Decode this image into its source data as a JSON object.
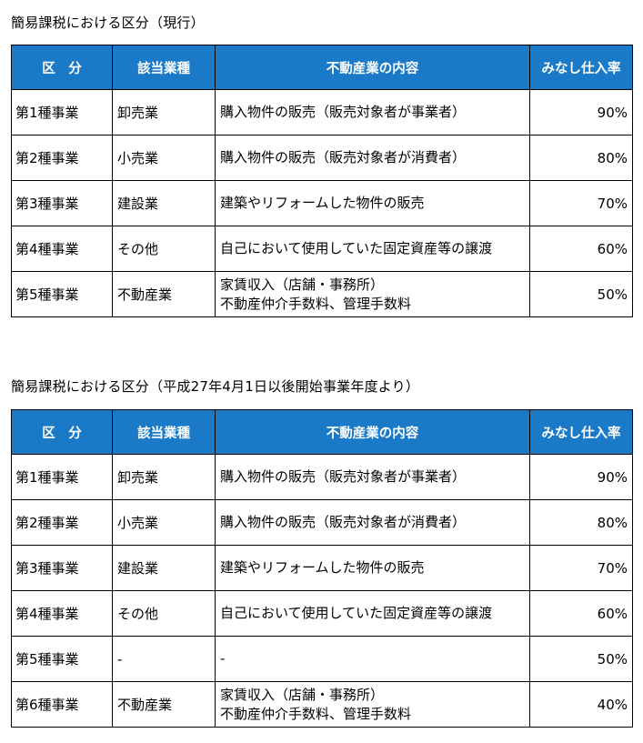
{
  "table1": {
    "title": "簡易課税における区分（現行）",
    "headers": [
      "区　分",
      "該当業種",
      "不動産業の内容",
      "みなし仕入率"
    ],
    "rows": [
      {
        "category": "第1種事業",
        "industry": "卸売業",
        "desc1": "購入物件の販売（販売対象者が事業者）",
        "desc2": "",
        "rate": "90%"
      },
      {
        "category": "第2種事業",
        "industry": "小売業",
        "desc1": "購入物件の販売（販売対象者が消費者）",
        "desc2": "",
        "rate": "80%"
      },
      {
        "category": "第3種事業",
        "industry": "建設業",
        "desc1": "建築やリフォームした物件の販売",
        "desc2": "",
        "rate": "70%"
      },
      {
        "category": "第4種事業",
        "industry": "その他",
        "desc1": "自己において使用していた固定資産等の譲渡",
        "desc2": "",
        "rate": "60%"
      },
      {
        "category": "第5種事業",
        "industry": "不動産業",
        "desc1": "家賃収入（店舗・事務所）",
        "desc2": "不動産仲介手数料、管理手数料",
        "rate": "50%"
      }
    ]
  },
  "table2": {
    "title": "簡易課税における区分（平成27年4月1日以後開始事業年度より）",
    "headers": [
      "区　分",
      "該当業種",
      "不動産業の内容",
      "みなし仕入率"
    ],
    "rows": [
      {
        "category": "第1種事業",
        "industry": "卸売業",
        "desc1": "購入物件の販売（販売対象者が事業者）",
        "desc2": "",
        "rate": "90%"
      },
      {
        "category": "第2種事業",
        "industry": "小売業",
        "desc1": "購入物件の販売（販売対象者が消費者）",
        "desc2": "",
        "rate": "80%"
      },
      {
        "category": "第3種事業",
        "industry": "建設業",
        "desc1": "建築やリフォームした物件の販売",
        "desc2": "",
        "rate": "70%"
      },
      {
        "category": "第4種事業",
        "industry": "その他",
        "desc1": "自己において使用していた固定資産等の譲渡",
        "desc2": "",
        "rate": "60%"
      },
      {
        "category": "第5種事業",
        "industry": "-",
        "desc1": "-",
        "desc2": "",
        "rate": "50%"
      },
      {
        "category": "第6種事業",
        "industry": "不動産業",
        "desc1": "家賃収入（店舗・事務所）",
        "desc2": "不動産仲介手数料、管理手数料",
        "rate": "40%"
      }
    ]
  },
  "colors": {
    "header_bg": "#1a7ac7",
    "header_text": "#ffffff",
    "border": "#000000"
  }
}
